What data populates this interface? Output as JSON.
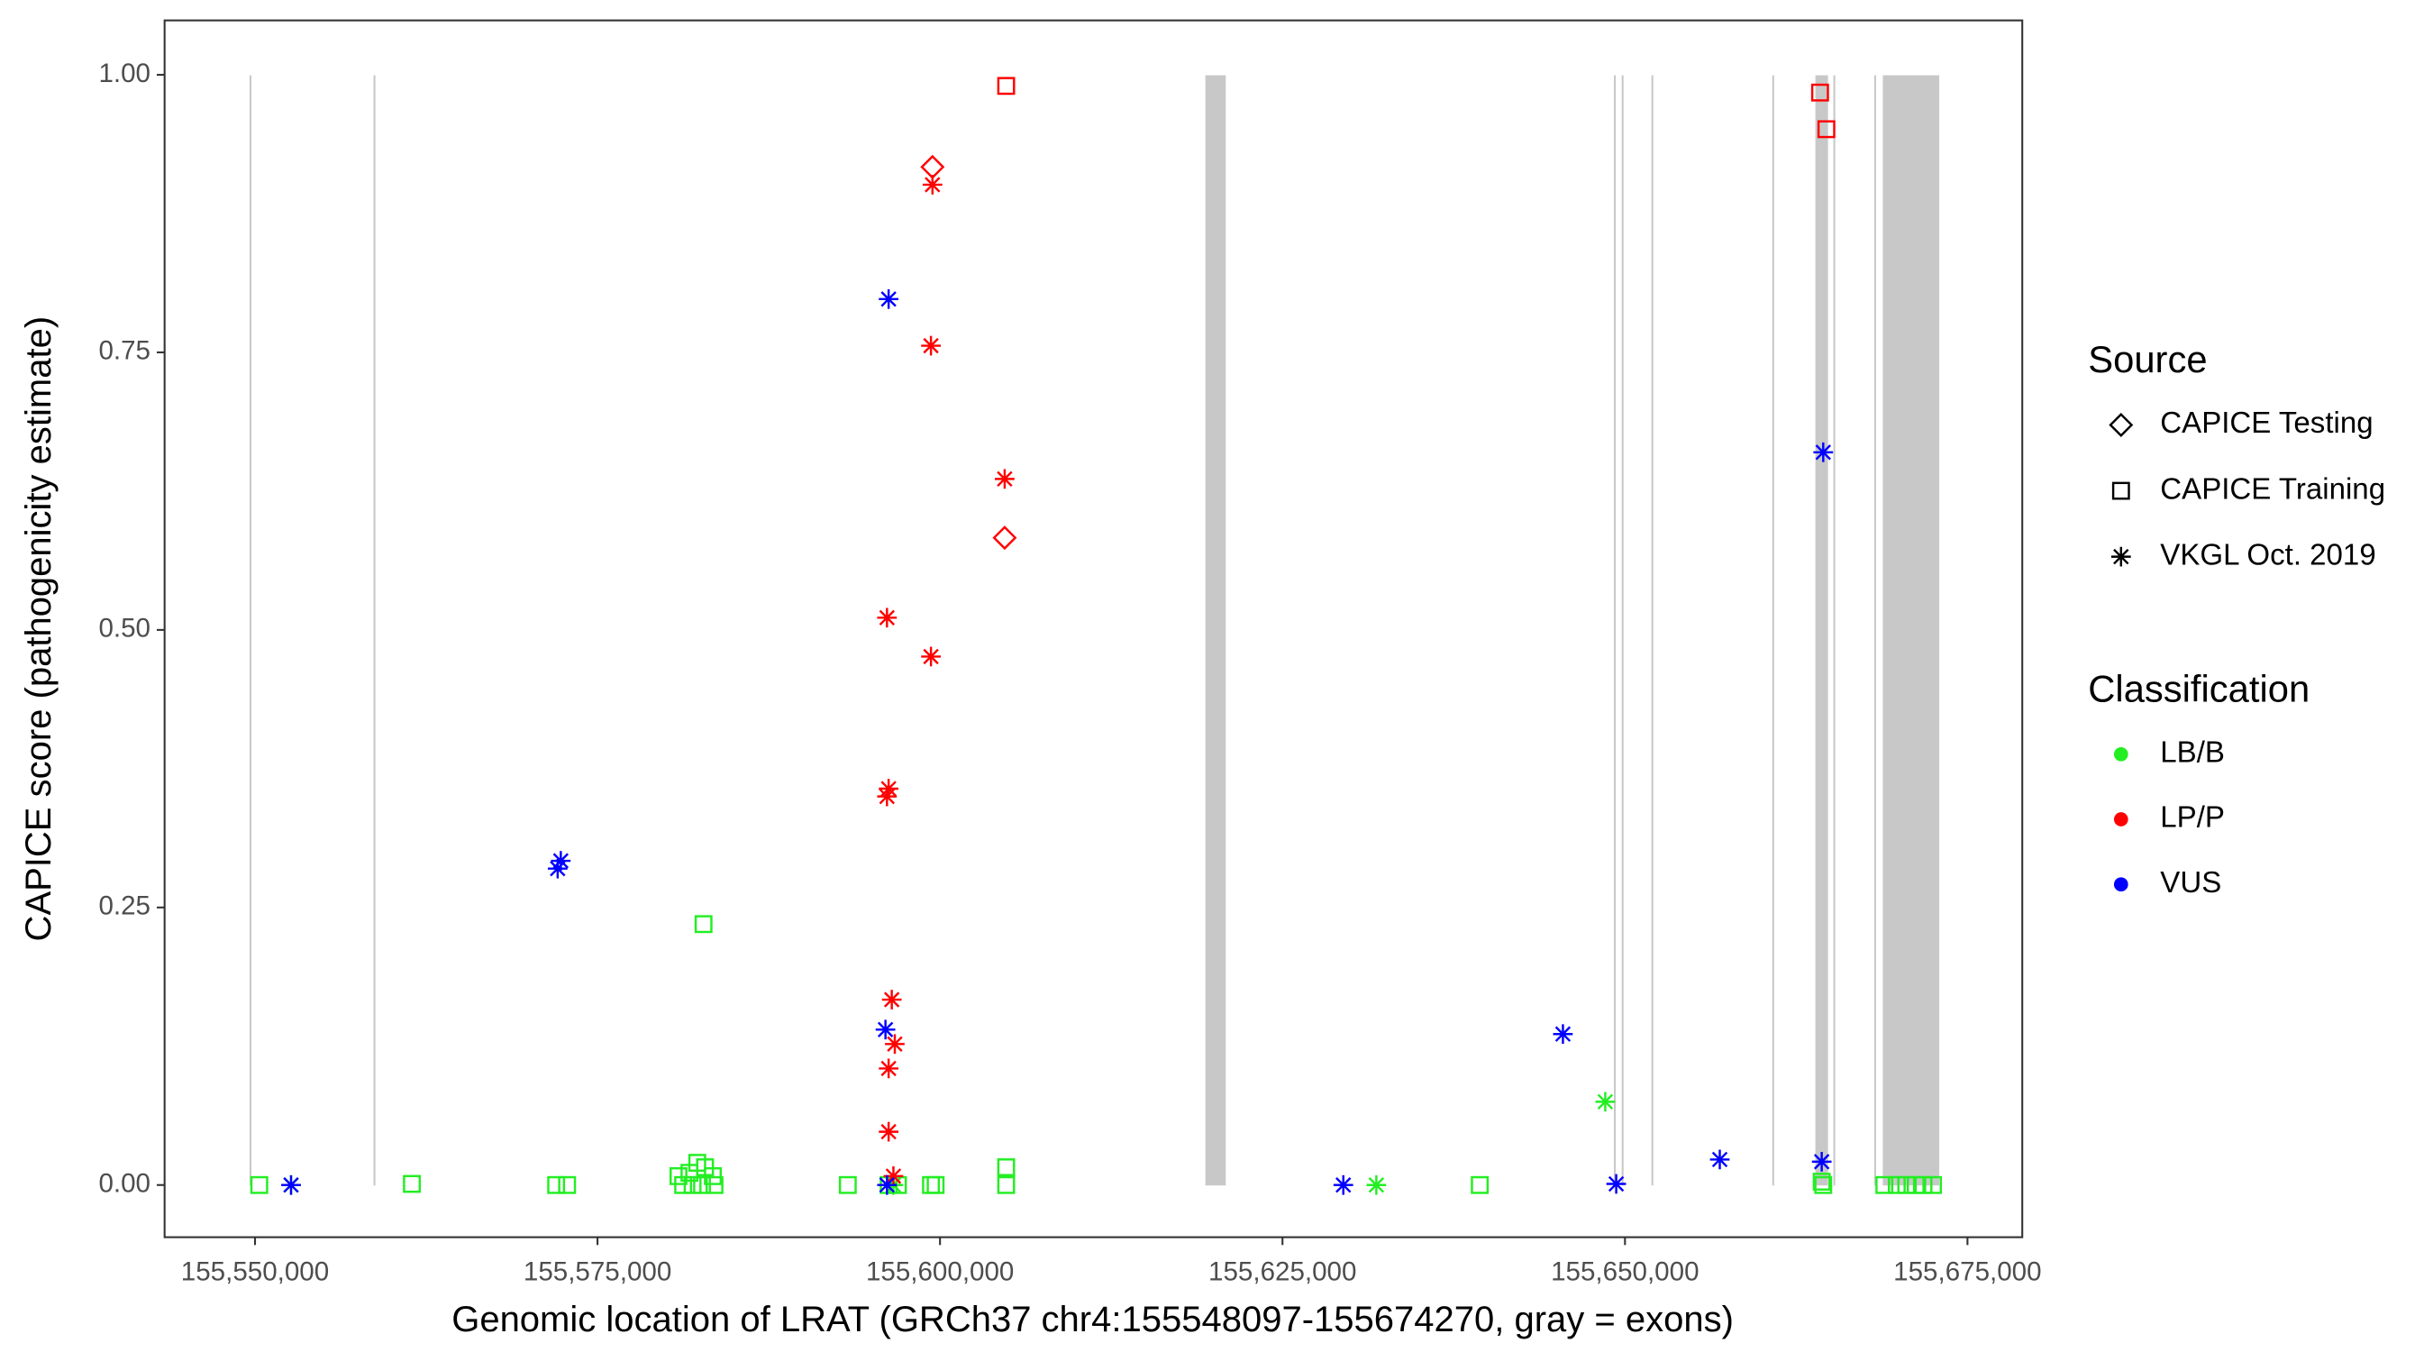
{
  "chart_data": {
    "type": "scatter",
    "x_label": "Genomic location of LRAT (GRCh37 chr4:155548097-155674270, gray = exons)",
    "y_label": "CAPICE score (pathogenicity estimate)",
    "xlim": [
      155543400,
      155679000
    ],
    "ylim": [
      -0.047,
      1.049
    ],
    "xticks": [
      {
        "value": 155550000,
        "label": "155,550,000"
      },
      {
        "value": 155575000,
        "label": "155,575,000"
      },
      {
        "value": 155600000,
        "label": "155,600,000"
      },
      {
        "value": 155625000,
        "label": "155,625,000"
      },
      {
        "value": 155650000,
        "label": "155,650,000"
      },
      {
        "value": 155675000,
        "label": "155,675,000"
      }
    ],
    "yticks": [
      {
        "value": 0,
        "label": "0.00"
      },
      {
        "value": 0.25,
        "label": "0.25"
      },
      {
        "value": 0.5,
        "label": "0.50"
      },
      {
        "value": 0.75,
        "label": "0.75"
      },
      {
        "value": 1,
        "label": "1.00"
      }
    ],
    "exon_color": "#c8c8c8",
    "exons": [
      [
        155549600,
        155549720
      ],
      [
        155558650,
        155558770
      ],
      [
        155619370,
        155620860
      ],
      [
        155649190,
        155649310
      ],
      [
        155649760,
        155649880
      ],
      [
        155651930,
        155652050
      ],
      [
        155660750,
        155660870
      ],
      [
        155663900,
        155664820
      ],
      [
        155665210,
        155665330
      ],
      [
        155668190,
        155668310
      ],
      [
        155668820,
        155672940
      ]
    ],
    "legend_source": {
      "title": "Source",
      "items": [
        {
          "label": "CAPICE Testing",
          "shape": "diamond"
        },
        {
          "label": "CAPICE Training",
          "shape": "square"
        },
        {
          "label": "VKGL Oct. 2019",
          "shape": "asterisk"
        }
      ]
    },
    "legend_classification": {
      "title": "Classification",
      "items": [
        {
          "label": "LB/B",
          "color": "#22ee22"
        },
        {
          "label": "LP/P",
          "color": "#ff0000"
        },
        {
          "label": "VUS",
          "color": "#0000ff"
        }
      ]
    },
    "series": [
      {
        "source": "CAPICE Training",
        "classification": "LB/B",
        "x": [
          155582740,
          155550310,
          155561450,
          155571980,
          155572780,
          155580910,
          155581710,
          155582280,
          155582850,
          155583420,
          155581250,
          155581940,
          155582630,
          155583540,
          155593270,
          155596250,
          155596930,
          155599340,
          155599680,
          155604830,
          155604830,
          155639400,
          155664360,
          155664470,
          155668930,
          155669840,
          155670530,
          155671220,
          155671790,
          155672480
        ],
        "y": [
          0.235,
          0,
          0.001,
          0,
          0,
          0.008,
          0.011,
          0.02,
          0.016,
          0.008,
          0,
          0,
          0,
          0,
          0,
          0,
          0,
          0,
          0,
          0.016,
          0,
          0,
          0.003,
          0,
          0,
          0,
          0,
          0,
          0,
          0
        ]
      },
      {
        "source": "VKGL Oct. 2019",
        "classification": "LB/B",
        "x": [
          155648560,
          155631850,
          155596600,
          155552630
        ],
        "y": [
          0.075,
          0,
          0,
          0
        ]
      },
      {
        "source": "CAPICE Training",
        "classification": "LP/P",
        "x": [
          155604830,
          155664240,
          155664700
        ],
        "y": [
          0.99,
          0.984,
          0.951
        ]
      },
      {
        "source": "CAPICE Testing",
        "classification": "LP/P",
        "x": [
          155599450,
          155604720
        ],
        "y": [
          0.917,
          0.583
        ]
      },
      {
        "source": "VKGL Oct. 2019",
        "classification": "LP/P",
        "x": [
          155599450,
          155599340,
          155604720,
          155596130,
          155599340,
          155596250,
          155596130,
          155596480,
          155596700,
          155596250,
          155596250,
          155596600
        ],
        "y": [
          0.901,
          0.756,
          0.636,
          0.511,
          0.476,
          0.357,
          0.35,
          0.167,
          0.127,
          0.105,
          0.048,
          0.008
        ]
      },
      {
        "source": "VKGL Oct. 2019",
        "classification": "VUS",
        "x": [
          155596250,
          155664470,
          155572320,
          155572090,
          155596020,
          155645470,
          155656920,
          155664360,
          155552630,
          155629440,
          155649360,
          155596130
        ],
        "y": [
          0.798,
          0.66,
          0.292,
          0.285,
          0.14,
          0.136,
          0.023,
          0.021,
          0,
          0,
          0.001,
          0
        ]
      }
    ]
  }
}
